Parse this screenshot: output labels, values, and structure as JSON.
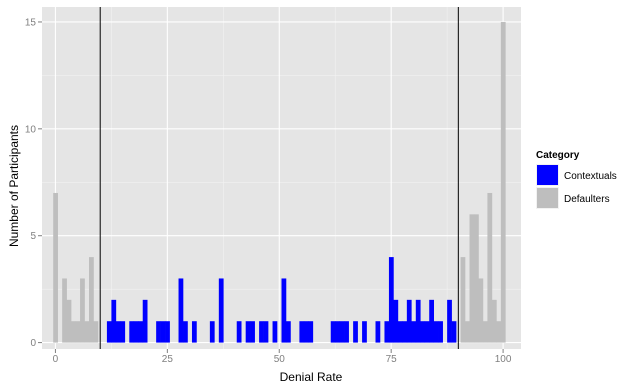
{
  "chart_data": {
    "type": "bar",
    "xlabel": "Denial Rate",
    "ylabel": "Number of Participants",
    "xlim": [
      -3,
      104
    ],
    "ylim": [
      -0.3,
      15.7
    ],
    "xticks": [
      0,
      25,
      50,
      75,
      100
    ],
    "yticks": [
      0,
      5,
      10,
      15
    ],
    "grid": true,
    "background": "#e5e5e5",
    "grid_color": "#ffffff",
    "bin_width": 1,
    "legend": {
      "title": "Category",
      "position": "right",
      "entries": [
        {
          "name": "Contextuals",
          "color": "#0000ff"
        },
        {
          "name": "Defaulters",
          "color": "#bebebe"
        }
      ]
    },
    "vlines": [
      10,
      90
    ],
    "series": [
      {
        "name": "Defaulters",
        "color": "#bebebe",
        "points": [
          [
            0,
            7
          ],
          [
            2,
            3
          ],
          [
            3,
            2
          ],
          [
            4,
            1
          ],
          [
            5,
            1
          ],
          [
            6,
            3
          ],
          [
            7,
            1
          ],
          [
            8,
            4
          ],
          [
            9,
            1
          ],
          [
            91,
            4
          ],
          [
            92,
            1
          ],
          [
            93,
            6
          ],
          [
            94,
            6
          ],
          [
            95,
            3
          ],
          [
            96,
            1
          ],
          [
            97,
            7
          ],
          [
            98,
            2
          ],
          [
            99,
            1
          ],
          [
            100,
            15
          ]
        ]
      },
      {
        "name": "Contextuals",
        "color": "#0000ff",
        "points": [
          [
            12,
            1
          ],
          [
            13,
            2
          ],
          [
            14,
            1
          ],
          [
            15,
            1
          ],
          [
            17,
            1
          ],
          [
            18,
            1
          ],
          [
            19,
            1
          ],
          [
            20,
            2
          ],
          [
            23,
            1
          ],
          [
            24,
            1
          ],
          [
            25,
            1
          ],
          [
            28,
            3
          ],
          [
            29,
            1
          ],
          [
            31,
            1
          ],
          [
            35,
            1
          ],
          [
            37,
            3
          ],
          [
            41,
            1
          ],
          [
            43,
            1
          ],
          [
            44,
            1
          ],
          [
            46,
            1
          ],
          [
            47,
            1
          ],
          [
            49,
            1
          ],
          [
            51,
            3
          ],
          [
            52,
            1
          ],
          [
            55,
            1
          ],
          [
            56,
            1
          ],
          [
            57,
            1
          ],
          [
            62,
            1
          ],
          [
            63,
            1
          ],
          [
            64,
            1
          ],
          [
            65,
            1
          ],
          [
            67,
            1
          ],
          [
            69,
            1
          ],
          [
            72,
            1
          ],
          [
            74,
            1
          ],
          [
            75,
            4
          ],
          [
            76,
            2
          ],
          [
            77,
            1
          ],
          [
            78,
            1
          ],
          [
            79,
            2
          ],
          [
            80,
            1
          ],
          [
            81,
            2
          ],
          [
            82,
            1
          ],
          [
            83,
            1
          ],
          [
            84,
            2
          ],
          [
            85,
            1
          ],
          [
            86,
            1
          ],
          [
            88,
            2
          ],
          [
            89,
            1
          ]
        ]
      }
    ]
  }
}
